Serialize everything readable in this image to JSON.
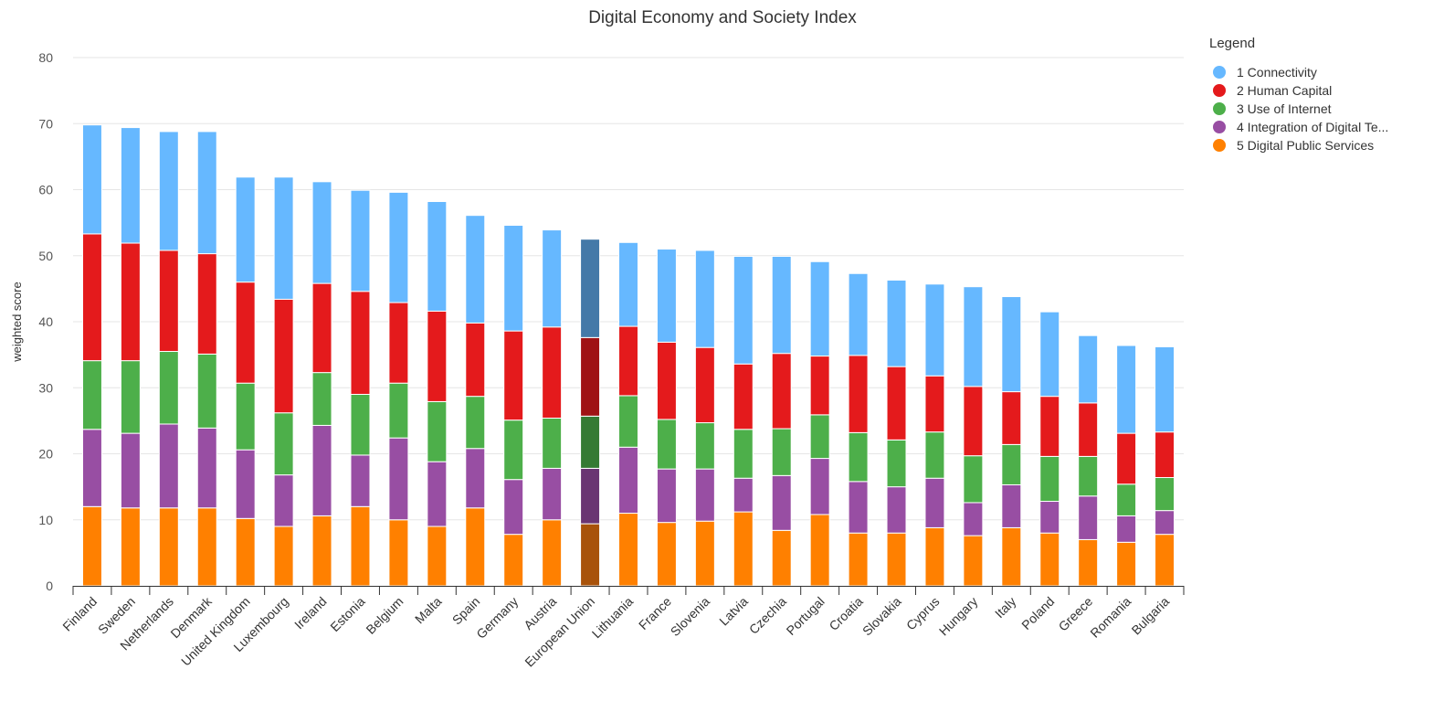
{
  "chart_data": {
    "type": "bar",
    "stacked": true,
    "title": "Digital Economy and Society Index",
    "xlabel": "",
    "ylabel": "weighted score",
    "ylim": [
      0,
      80
    ],
    "yticks": [
      0,
      10,
      20,
      30,
      40,
      50,
      60,
      70,
      80
    ],
    "grid": true,
    "legend": {
      "title": "Legend",
      "placement": "right"
    },
    "highlight_category": "European Union",
    "categories": [
      "Finland",
      "Sweden",
      "Netherlands",
      "Denmark",
      "United Kingdom",
      "Luxembourg",
      "Ireland",
      "Estonia",
      "Belgium",
      "Malta",
      "Spain",
      "Germany",
      "Austria",
      "European Union",
      "Lithuania",
      "France",
      "Slovenia",
      "Latvia",
      "Czechia",
      "Portugal",
      "Croatia",
      "Slovakia",
      "Cyprus",
      "Hungary",
      "Italy",
      "Poland",
      "Greece",
      "Romania",
      "Bulgaria"
    ],
    "series": [
      {
        "name": "5 Digital Public Services",
        "color": "#ff8000",
        "highlight_color": "#a8520a",
        "values": [
          12.0,
          11.8,
          11.8,
          11.8,
          10.2,
          9.0,
          10.6,
          12.0,
          10.0,
          9.0,
          11.8,
          7.8,
          10.0,
          9.4,
          11.0,
          9.6,
          9.8,
          11.2,
          8.4,
          10.8,
          8.0,
          8.0,
          8.8,
          7.6,
          8.8,
          8.0,
          7.0,
          6.6,
          7.8
        ]
      },
      {
        "name": "4 Integration of Digital Te...",
        "color": "#984ea3",
        "highlight_color": "#6a3572",
        "values": [
          11.7,
          11.3,
          12.7,
          12.1,
          10.4,
          7.8,
          13.7,
          7.8,
          12.4,
          9.8,
          9.0,
          8.3,
          7.8,
          8.4,
          10.0,
          8.1,
          7.9,
          5.1,
          8.3,
          8.5,
          7.8,
          7.0,
          7.5,
          5.0,
          6.5,
          4.8,
          6.6,
          4.0,
          3.6
        ]
      },
      {
        "name": "3 Use of Internet",
        "color": "#4daf4a",
        "highlight_color": "#357a33",
        "values": [
          10.4,
          11.0,
          11.0,
          11.2,
          10.1,
          9.4,
          8.0,
          9.2,
          8.3,
          9.1,
          7.9,
          9.0,
          7.6,
          7.9,
          7.8,
          7.5,
          7.0,
          7.4,
          7.1,
          6.6,
          7.4,
          7.1,
          7.0,
          7.1,
          6.1,
          6.8,
          6.0,
          4.8,
          5.0
        ]
      },
      {
        "name": "2 Human Capital",
        "color": "#e41a1c",
        "highlight_color": "#9f1214",
        "values": [
          19.2,
          17.8,
          15.3,
          15.2,
          15.3,
          17.2,
          13.5,
          15.6,
          12.2,
          13.7,
          11.1,
          13.5,
          13.8,
          11.9,
          10.5,
          11.7,
          11.4,
          9.9,
          11.4,
          8.9,
          11.7,
          11.1,
          8.5,
          10.5,
          8.0,
          9.1,
          8.1,
          7.7,
          6.9
        ]
      },
      {
        "name": "1 Connectivity",
        "color": "#66b8ff",
        "highlight_color": "#4479a8",
        "values": [
          16.5,
          17.5,
          18.0,
          18.5,
          15.9,
          18.5,
          15.4,
          15.3,
          16.7,
          16.6,
          16.3,
          16.0,
          14.7,
          14.9,
          12.7,
          14.1,
          14.7,
          16.3,
          14.7,
          14.3,
          12.4,
          13.1,
          13.9,
          15.1,
          14.4,
          12.8,
          10.2,
          13.3,
          12.9
        ]
      }
    ]
  }
}
